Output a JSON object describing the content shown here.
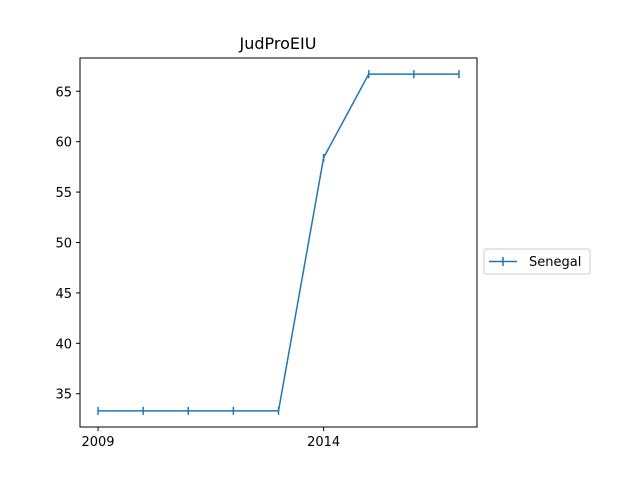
{
  "chart_data": {
    "type": "line",
    "title": "JudProEIU",
    "xlabel": "",
    "ylabel": "",
    "x": [
      2009,
      2010,
      2011,
      2012,
      2013,
      2014,
      2015,
      2016,
      2017
    ],
    "xlim": [
      2008.6,
      2017.4
    ],
    "ylim": [
      31.7,
      68.3
    ],
    "xticks": [
      2009,
      2014
    ],
    "yticks": [
      35,
      40,
      45,
      50,
      55,
      60,
      65
    ],
    "series": [
      {
        "name": "Senegal",
        "values": [
          33.3,
          33.3,
          33.3,
          33.3,
          33.3,
          58.4,
          66.7,
          66.7,
          66.7
        ],
        "color": "#1f77b4",
        "marker": "|"
      }
    ],
    "grid": false,
    "legend_position": "right-outside"
  }
}
